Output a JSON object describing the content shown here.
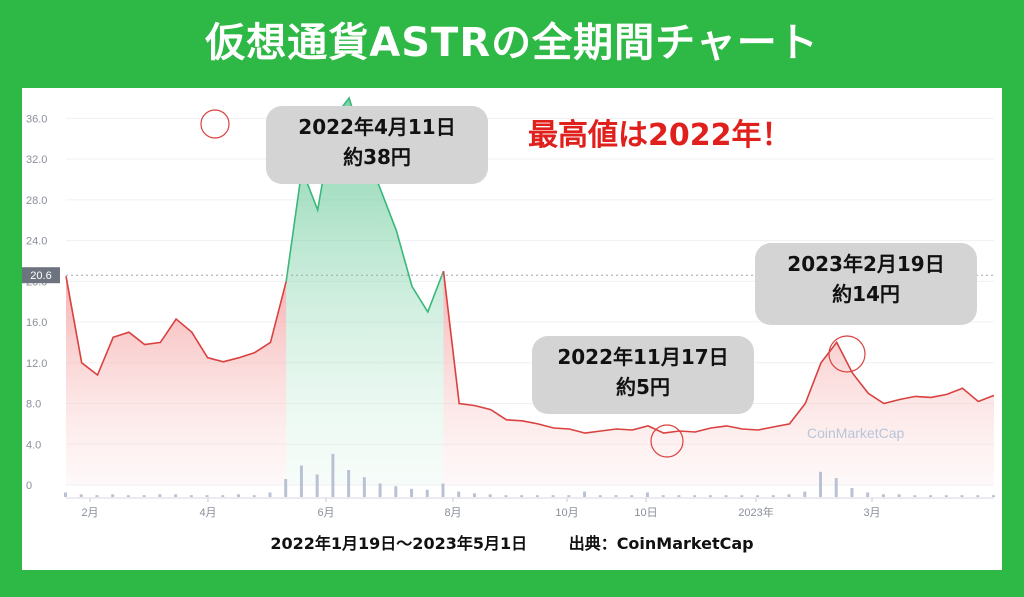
{
  "header": {
    "title": "仮想通貨ASTRの全期間チャート"
  },
  "highlight": "最高値は2022年！",
  "callouts": {
    "peak": {
      "date": "2022年4月11日",
      "price": "約38円"
    },
    "low": {
      "date": "2022年11月17日",
      "price": "約5円"
    },
    "recent": {
      "date": "2023年2月19日",
      "price": "約14円"
    }
  },
  "footer": {
    "range": "2022年1月19日〜2023年5月1日",
    "source": "出典：CoinMarketCap"
  },
  "watermark": "CoinMarketCap",
  "price_marker": "20.6",
  "colors": {
    "up": "#3ab87a",
    "down": "#d9413f",
    "background": "#2eb845",
    "accent": "#e0201c"
  },
  "chart_data": {
    "type": "area",
    "ylim": [
      0,
      38
    ],
    "yticks": [
      "0",
      "4.0",
      "8.0",
      "12.0",
      "16.0",
      "20.0",
      "24.0",
      "28.0",
      "32.0",
      "36.0"
    ],
    "xticks": [
      "2月",
      "4月",
      "6月",
      "8月",
      "10月",
      "10日",
      "2023年",
      "3月"
    ],
    "reference_price": 20.6,
    "series": [
      {
        "values": [
          20.5,
          12,
          10.8,
          14.5,
          15,
          13.8,
          14,
          16.3,
          15,
          12.5,
          12.1,
          12.5,
          13,
          14,
          20,
          31,
          27,
          36,
          38,
          33,
          29,
          25,
          19.5,
          17,
          21,
          8,
          7.8,
          7.4,
          6.4,
          6.3,
          6,
          5.6,
          5.5,
          5.1,
          5.3,
          5.5,
          5.4,
          5.8,
          5.1,
          5.3,
          5.2,
          5.6,
          5.8,
          5.5,
          5.4,
          5.7,
          6,
          8,
          12,
          14,
          11,
          9,
          8,
          8.4,
          8.7,
          8.6,
          8.9,
          9.5,
          8.2,
          8.8
        ]
      }
    ],
    "volume": [
      0.5,
      0.3,
      0.2,
      0.3,
      0.2,
      0.2,
      0.3,
      0.3,
      0.2,
      0.2,
      0.2,
      0.3,
      0.2,
      0.5,
      2,
      3.5,
      2.5,
      4.8,
      3,
      2.2,
      1.5,
      1.2,
      0.9,
      0.8,
      1.5,
      0.6,
      0.4,
      0.3,
      0.2,
      0.2,
      0.2,
      0.2,
      0.2,
      0.6,
      0.2,
      0.2,
      0.2,
      0.5,
      0.2,
      0.2,
      0.2,
      0.2,
      0.2,
      0.2,
      0.2,
      0.2,
      0.3,
      0.6,
      2.8,
      2.1,
      1,
      0.5,
      0.3,
      0.3,
      0.2,
      0.2,
      0.2,
      0.2,
      0.2,
      0.2
    ]
  }
}
